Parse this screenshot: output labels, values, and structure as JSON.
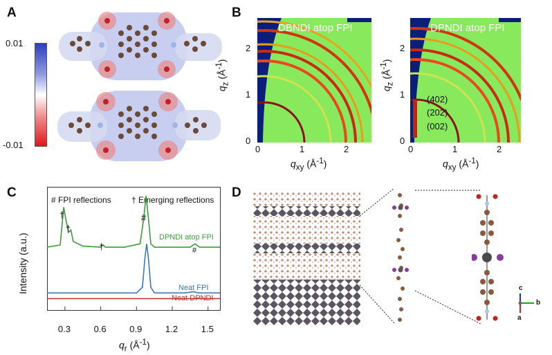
{
  "panels": {
    "a": {
      "label": "A",
      "colorbar": {
        "max": "0.01",
        "min": "-0.01",
        "colors": {
          "top": "#2e3fbd",
          "mid": "#ffffff",
          "bottom": "#e0161b"
        }
      }
    },
    "b": {
      "label": "B",
      "plot1": {
        "title": "DBNDI atop FPI"
      },
      "plot2": {
        "title": "DPNDI atop FPI",
        "annotations": [
          "(402)",
          "(202)",
          "(002)"
        ]
      },
      "xlabel_main": "q",
      "xlabel_sub": "xy",
      "xlabel_unit": "(Å",
      "ylabel_main": "q",
      "ylabel_sub": "z",
      "ylabel_unit": "(Å",
      "inverse": "-1",
      "close_paren": ")",
      "xticks": [
        "0",
        "1",
        "2"
      ],
      "yticks": [
        "0",
        "1",
        "2"
      ]
    },
    "c": {
      "label": "C",
      "legend_hash": "# FPI reflections",
      "legend_dagger": "† Emerging reflections",
      "ylabel": "Intensity (a.u.)",
      "xlabel_main": "q",
      "xlabel_sub": "r",
      "xlabel_unit": "(Å",
      "inverse": "-1",
      "close_paren": ")",
      "xticks": [
        "0.3",
        "0.6",
        "0.9",
        "1.2",
        "1.5"
      ],
      "peak_marks": [
        "†",
        "†",
        "†",
        "#",
        "#"
      ],
      "trace_labels": [
        "DPNDI atop FPI",
        "Neat FPI",
        "Neat DPNDI"
      ],
      "trace_colors": [
        "#3c9a3c",
        "#3a78b6",
        "#cc2a2a"
      ]
    },
    "d": {
      "label": "D",
      "axes": {
        "c": "c",
        "b": "b",
        "a": "a"
      }
    }
  },
  "chart_data": {
    "type": "line",
    "xlabel": "qr (Å-1)",
    "ylabel": "Intensity (a.u.)",
    "xlim": [
      0.15,
      1.6
    ],
    "series": [
      {
        "name": "DPNDI atop FPI",
        "x": [
          0.15,
          0.26,
          0.29,
          0.31,
          0.33,
          0.35,
          0.37,
          0.45,
          0.6,
          0.62,
          0.64,
          0.8,
          0.93,
          0.96,
          0.98,
          1.0,
          1.02,
          1.05,
          1.2,
          1.35,
          1.39,
          1.43,
          1.6
        ],
        "y": [
          0.55,
          0.57,
          0.9,
          0.78,
          0.68,
          0.7,
          0.6,
          0.56,
          0.55,
          0.57,
          0.55,
          0.55,
          0.58,
          0.8,
          1.0,
          0.8,
          0.58,
          0.55,
          0.55,
          0.55,
          0.58,
          0.55,
          0.55
        ]
      },
      {
        "name": "Neat FPI",
        "x": [
          0.15,
          0.9,
          0.95,
          0.97,
          0.985,
          1.0,
          1.02,
          1.05,
          1.3,
          1.38,
          1.42,
          1.6
        ],
        "y": [
          0.15,
          0.15,
          0.2,
          0.45,
          0.58,
          0.45,
          0.2,
          0.15,
          0.15,
          0.16,
          0.15,
          0.15
        ]
      },
      {
        "name": "Neat DPNDI",
        "x": [
          0.15,
          1.6
        ],
        "y": [
          0.1,
          0.1
        ]
      }
    ]
  }
}
